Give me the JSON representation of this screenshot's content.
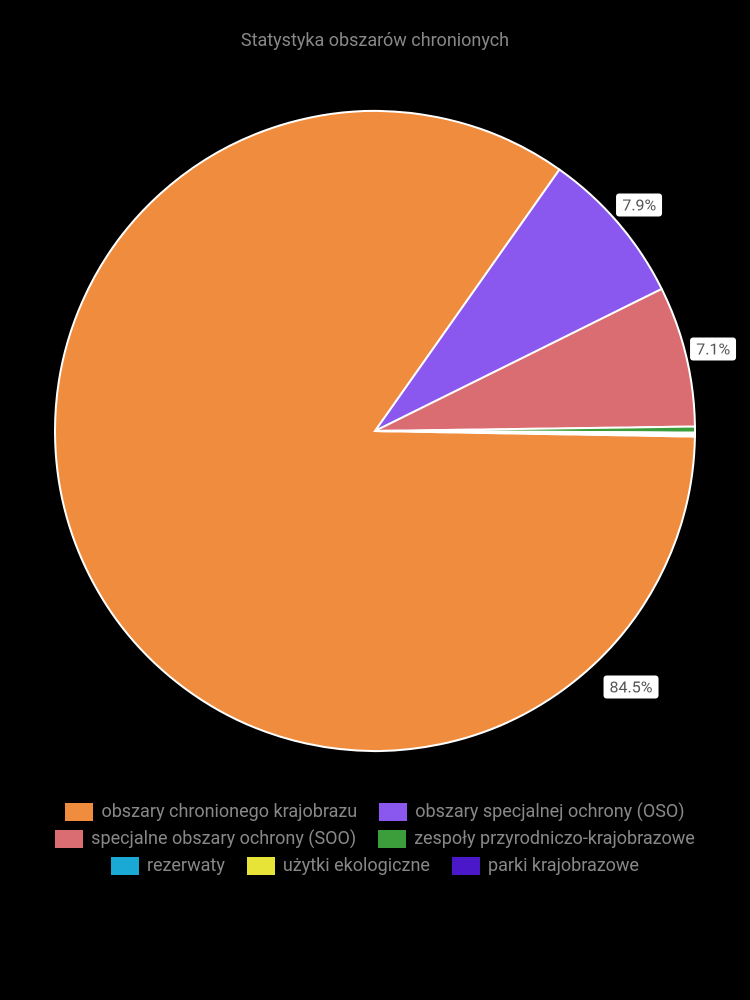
{
  "chart": {
    "type": "pie",
    "title": "Statystyka obszarów chronionych",
    "title_color": "#888888",
    "title_fontsize": 18,
    "background_color": "#000000",
    "label_bg": "#ffffff",
    "label_text_color": "#555555",
    "label_fontsize": 16,
    "radius": 320,
    "stroke_color": "#ffffff",
    "stroke_width": 2,
    "start_angle_deg": 91,
    "slices": [
      {
        "label": "obszary chronionego krajobrazu",
        "pct": 84.5,
        "color": "#f08c3e",
        "show_label": true
      },
      {
        "label": "obszary specjalnej ochrony (OSO)",
        "pct": 7.9,
        "color": "#8a58ee",
        "show_label": true
      },
      {
        "label": "specjalne obszary ochrony (SOO)",
        "pct": 7.1,
        "color": "#d96d71",
        "show_label": true
      },
      {
        "label": "zespoły przyrodniczo-krajobrazowe",
        "pct": 0.3,
        "color": "#3b9e3b",
        "show_label": false
      },
      {
        "label": "rezerwaty",
        "pct": 0.1,
        "color": "#1aa8d4",
        "show_label": false
      },
      {
        "label": "użytki ekologiczne",
        "pct": 0.05,
        "color": "#e8e337",
        "show_label": false
      },
      {
        "label": "parki krajobrazowe",
        "pct": 0.05,
        "color": "#4a18c9",
        "show_label": false
      }
    ],
    "legend": {
      "text_color": "#888888",
      "fontsize": 18,
      "swatch_w": 28,
      "swatch_h": 18,
      "items": [
        {
          "label": "obszary chronionego krajobrazu",
          "color": "#f08c3e"
        },
        {
          "label": "obszary specjalnej ochrony (OSO)",
          "color": "#8a58ee"
        },
        {
          "label": "specjalne obszary ochrony (SOO)",
          "color": "#d96d71"
        },
        {
          "label": "zespoły przyrodniczo-krajobrazowe",
          "color": "#3b9e3b"
        },
        {
          "label": "rezerwaty",
          "color": "#1aa8d4"
        },
        {
          "label": "użytki ekologiczne",
          "color": "#e8e337"
        },
        {
          "label": "parki krajobrazowe",
          "color": "#4a18c9"
        }
      ]
    }
  }
}
